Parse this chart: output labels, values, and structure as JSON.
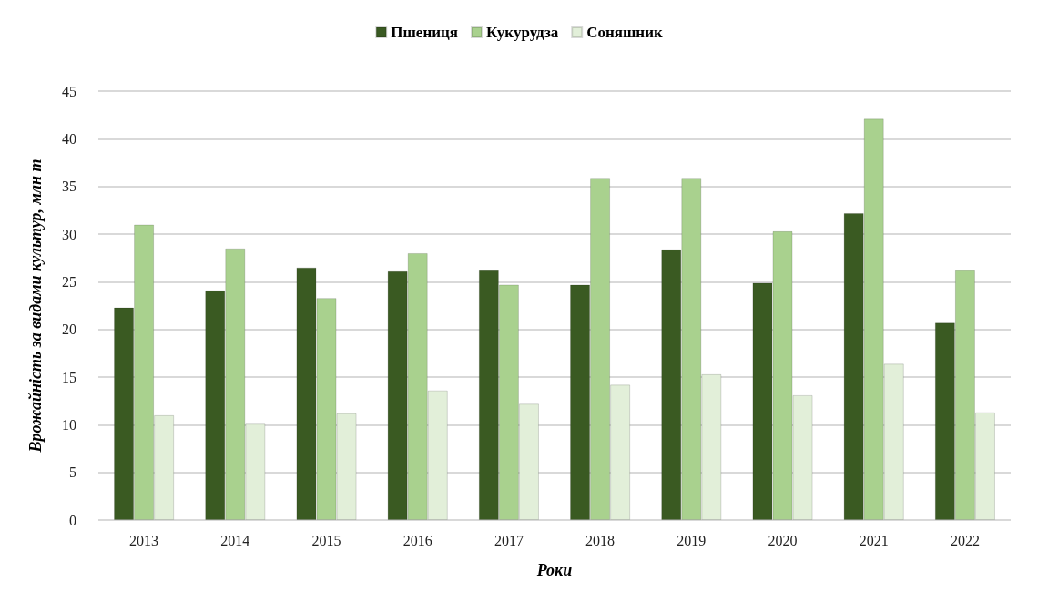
{
  "chart_data": {
    "type": "bar",
    "categories": [
      "2013",
      "2014",
      "2015",
      "2016",
      "2017",
      "2018",
      "2019",
      "2020",
      "2021",
      "2022"
    ],
    "series": [
      {
        "name": "Пшениця",
        "color": "#3a5a22",
        "values": [
          22.3,
          24.1,
          26.5,
          26.1,
          26.2,
          24.7,
          28.4,
          24.9,
          32.2,
          20.7
        ]
      },
      {
        "name": "Кукурудза",
        "color": "#a9d18e",
        "values": [
          31.0,
          28.5,
          23.3,
          28.0,
          24.7,
          35.9,
          35.9,
          30.3,
          42.1,
          26.2
        ]
      },
      {
        "name": "Соняшник",
        "color": "#e2efd9",
        "values": [
          11.0,
          10.1,
          11.2,
          13.6,
          12.2,
          14.2,
          15.3,
          13.1,
          16.4,
          11.3
        ]
      }
    ],
    "xlabel": "Роки",
    "ylabel": "Врожайність за видами культур, млн т",
    "ylim": [
      0,
      45
    ],
    "yticks": [
      0,
      5,
      10,
      15,
      20,
      25,
      30,
      35,
      40,
      45
    ],
    "grid": "y",
    "legend": "top"
  }
}
